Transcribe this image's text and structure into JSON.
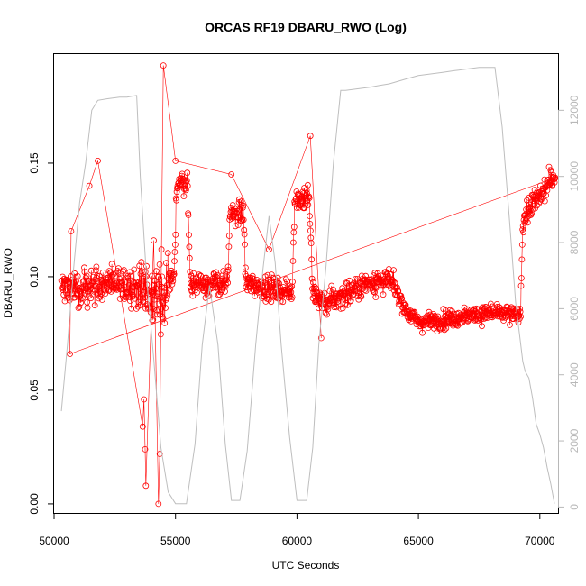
{
  "chart_data": {
    "type": "scatter",
    "title": "ORCAS RF19 DBARU_RWO (Log)",
    "xlabel": "UTC Seconds",
    "ylabel": "DBARU_RWO",
    "xlim": [
      50000,
      70750
    ],
    "ylim": [
      -0.004,
      0.198
    ],
    "y2lim": [
      -180,
      13700
    ],
    "x_ticks": [
      50000,
      55000,
      60000,
      65000,
      70000
    ],
    "x_tick_labels": [
      "50000",
      "55000",
      "60000",
      "65000",
      "70000"
    ],
    "y_ticks": [
      0.0,
      0.05,
      0.1,
      0.15
    ],
    "y_tick_labels": [
      "0.00",
      "0.05",
      "0.10",
      "0.15"
    ],
    "y2_ticks": [
      0,
      2000,
      4000,
      6000,
      8000,
      10000,
      12000
    ],
    "y2_tick_labels": [
      "0",
      "2000",
      "4000",
      "6000",
      "8000",
      "10000",
      "12000"
    ],
    "grid": false,
    "colors": {
      "series_points": "#ff0000",
      "secondary_line": "#bebebe",
      "axis": "#000000",
      "right_axis": "#b8b8b8"
    },
    "secondary_series": {
      "x": [
        50300,
        50550,
        50800,
        51050,
        51300,
        51550,
        51800,
        52200,
        52700,
        53000,
        53400,
        53550,
        53800,
        54100,
        54400,
        54700,
        55000,
        55450,
        55800,
        56100,
        56400,
        56750,
        57050,
        57300,
        57650,
        57950,
        58300,
        58600,
        58850,
        59100,
        59350,
        59700,
        60000,
        60400,
        60650,
        60900,
        61200,
        61500,
        61800,
        62000,
        62500,
        63000,
        63400,
        63800,
        64500,
        65000,
        65500,
        66000,
        66500,
        67000,
        67500,
        67900,
        68150,
        68450,
        68750,
        69000,
        69150,
        69300,
        69400,
        69550,
        69700,
        69850,
        70000,
        70150,
        70300,
        70450,
        70600
      ],
      "y": [
        2900,
        4900,
        7200,
        9200,
        10400,
        12000,
        12300,
        12350,
        12400,
        12400,
        12450,
        10000,
        7000,
        4500,
        1800,
        450,
        100,
        100,
        1900,
        4900,
        6700,
        4900,
        1900,
        200,
        200,
        1700,
        4900,
        7200,
        8800,
        7400,
        4900,
        2100,
        200,
        200,
        1800,
        4900,
        7300,
        10400,
        12600,
        12600,
        12650,
        12700,
        12750,
        12800,
        12950,
        13050,
        13100,
        13150,
        13200,
        13250,
        13300,
        13300,
        13300,
        11500,
        8700,
        6200,
        5300,
        4400,
        4100,
        3900,
        3300,
        2500,
        2200,
        1800,
        1200,
        700,
        100
      ]
    }
  }
}
